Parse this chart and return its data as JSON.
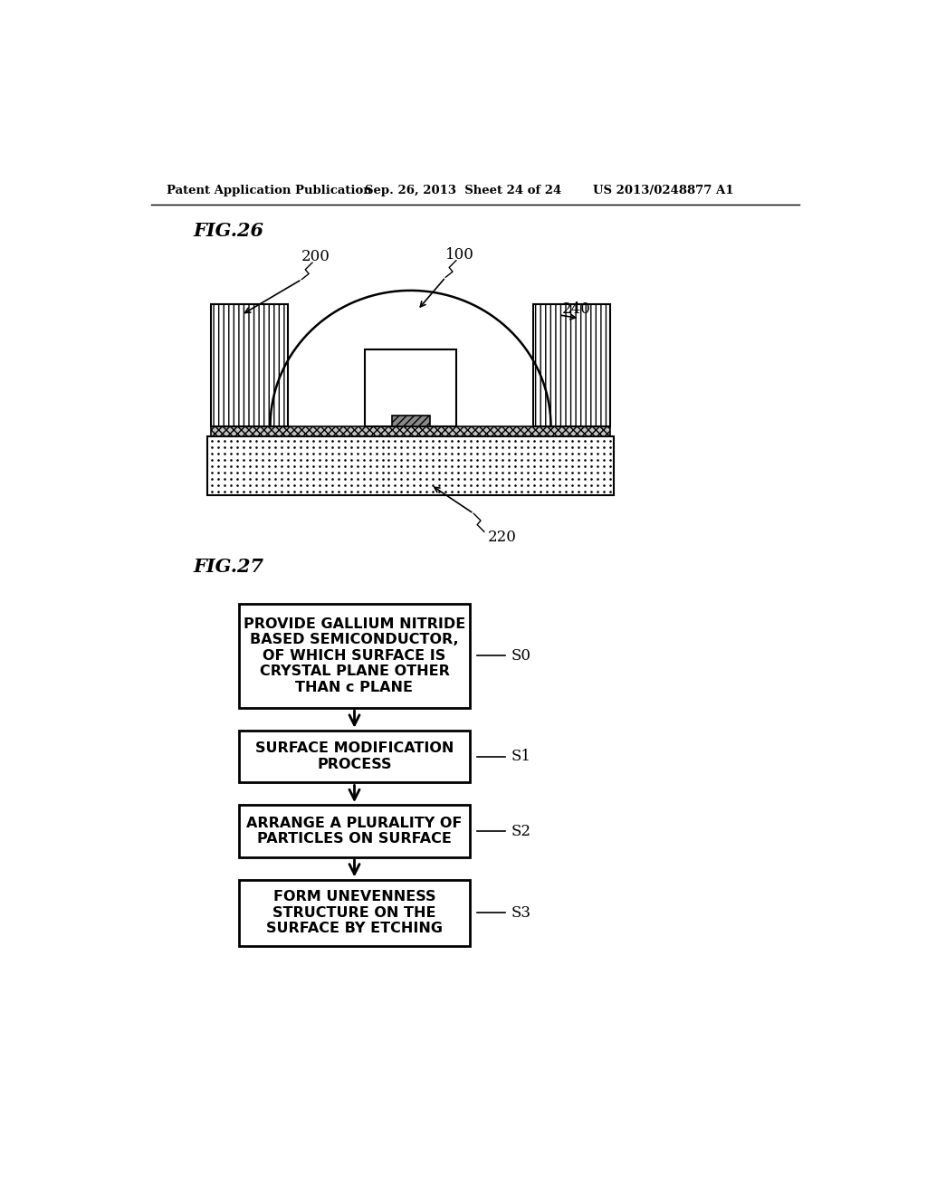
{
  "bg_color": "#ffffff",
  "header_left": "Patent Application Publication",
  "header_mid": "Sep. 26, 2013  Sheet 24 of 24",
  "header_right": "US 2013/0248877 A1",
  "fig26_label": "FIG.26",
  "fig27_label": "FIG.27",
  "label_200": "200",
  "label_100": "100",
  "label_240": "240",
  "label_220": "220",
  "flow_steps": [
    "PROVIDE GALLIUM NITRIDE\nBASED SEMICONDUCTOR,\nOF WHICH SURFACE IS\nCRYSTAL PLANE OTHER\nTHAN c PLANE",
    "SURFACE MODIFICATION\nPROCESS",
    "ARRANGE A PLURALITY OF\nPARTICLES ON SURFACE",
    "FORM UNEVENNESS\nSTRUCTURE ON THE\nSURFACE BY ETCHING"
  ],
  "flow_labels": [
    "S0",
    "S1",
    "S2",
    "S3"
  ]
}
